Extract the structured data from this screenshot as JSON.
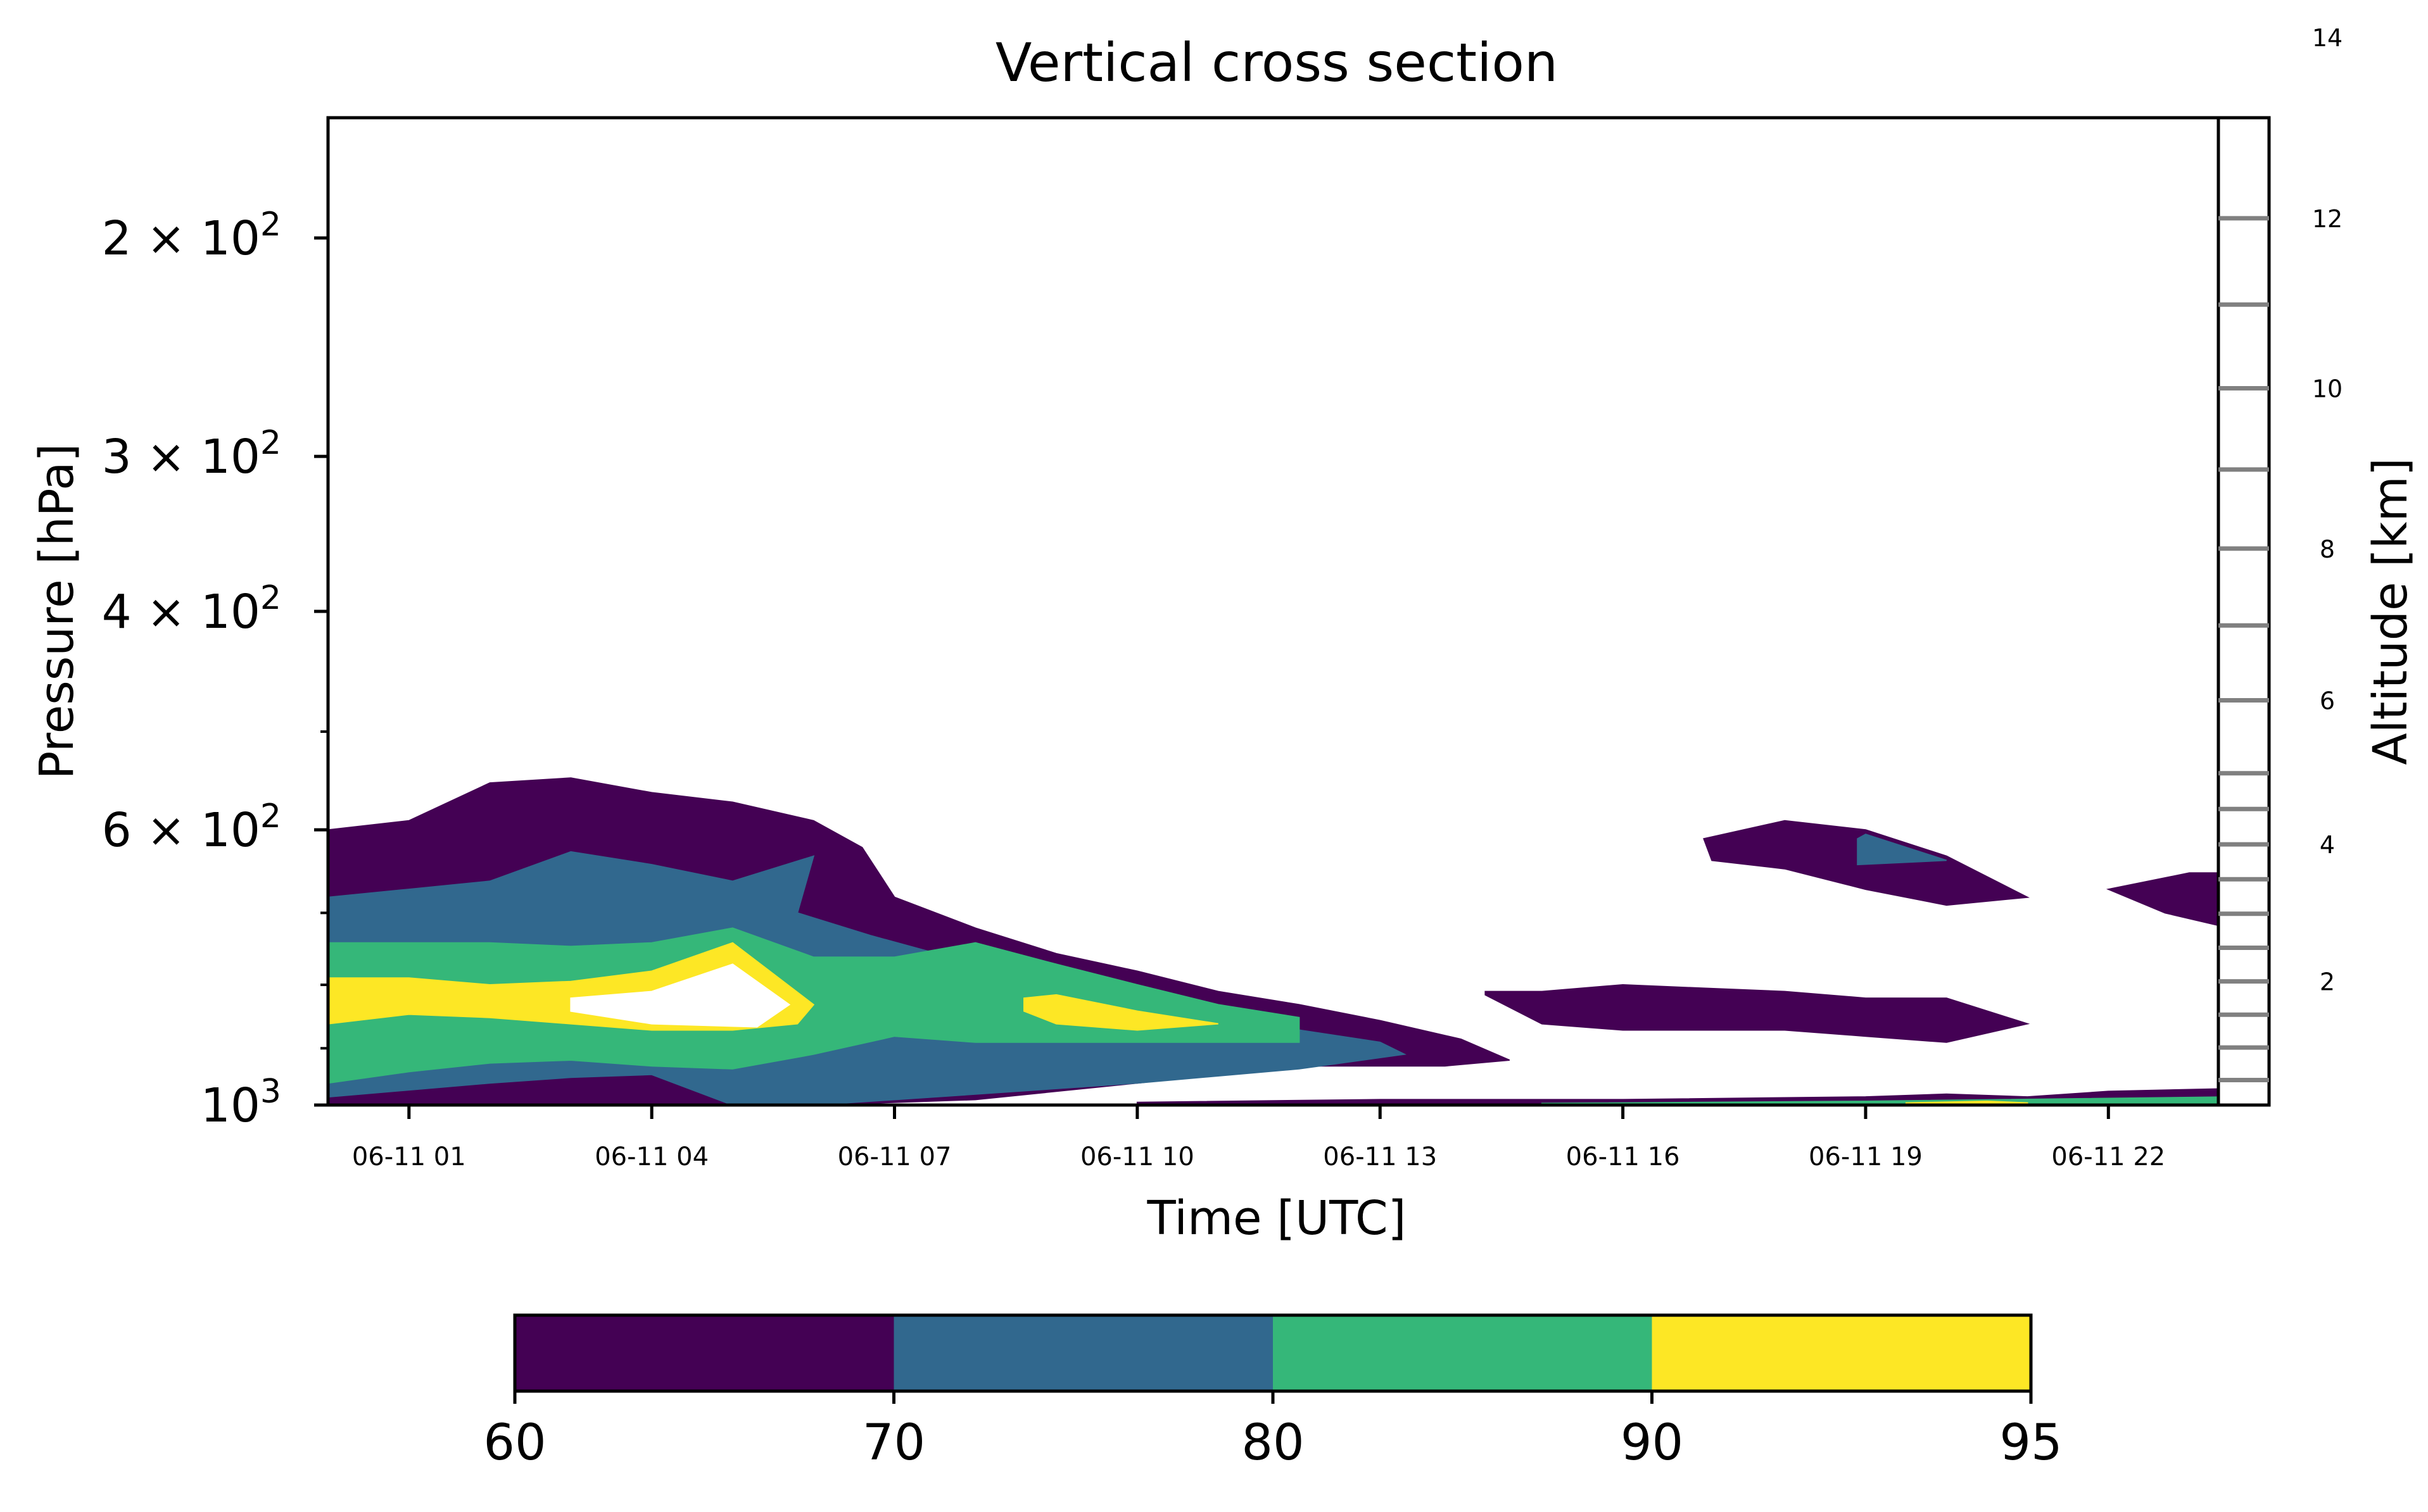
{
  "chart_data": {
    "type": "heatmap",
    "title": "Vertical cross section",
    "xlabel": "Time [UTC]",
    "ylabel": "Pressure [hPa]",
    "y2label": "Altitude [km]",
    "y_scale": "log",
    "y_inverted": true,
    "x_range": [
      "06-11 00:00",
      "06-11 23:30"
    ],
    "y_range_hpa": [
      1000,
      160
    ],
    "x_ticks": [
      {
        "t": 1,
        "label": "06-11 01"
      },
      {
        "t": 4,
        "label": "06-11 04"
      },
      {
        "t": 7,
        "label": "06-11 07"
      },
      {
        "t": 10,
        "label": "06-11 10"
      },
      {
        "t": 13,
        "label": "06-11 13"
      },
      {
        "t": 16,
        "label": "06-11 16"
      },
      {
        "t": 19,
        "label": "06-11 19"
      },
      {
        "t": 22,
        "label": "06-11 22"
      }
    ],
    "y_ticks": [
      {
        "p": 200,
        "base": "2 × 10",
        "exp": "2"
      },
      {
        "p": 300,
        "base": "3 × 10",
        "exp": "2"
      },
      {
        "p": 400,
        "base": "4 × 10",
        "exp": "2"
      },
      {
        "p": 600,
        "base": "6 × 10",
        "exp": "2"
      },
      {
        "p": 1000,
        "base": "10",
        "exp": "3"
      }
    ],
    "y_minor_ticks": [
      500,
      700,
      800,
      900
    ],
    "altitude_ticks_km": [
      {
        "km": 2,
        "label": "2"
      },
      {
        "km": 4,
        "label": "4"
      },
      {
        "km": 6,
        "label": "6"
      },
      {
        "km": 8,
        "label": "8"
      },
      {
        "km": 10,
        "label": "10"
      },
      {
        "km": 12,
        "label": "12"
      },
      {
        "km": 14,
        "label": "14"
      }
    ],
    "levels": [
      60,
      70,
      80,
      90,
      95
    ],
    "level_colors": [
      "#440154",
      "#31688e",
      "#35b779",
      "#fde725"
    ],
    "colorbar": {
      "orientation": "horizontal",
      "tick_labels": [
        "60",
        "70",
        "80",
        "90",
        "95"
      ]
    },
    "contour_regions": [
      {
        "level": 60,
        "color": "#440154",
        "points": [
          [
            0,
            600
          ],
          [
            1,
            590
          ],
          [
            2,
            550
          ],
          [
            3,
            545
          ],
          [
            4,
            560
          ],
          [
            5,
            570
          ],
          [
            6,
            590
          ],
          [
            6.6,
            620
          ],
          [
            7,
            680
          ],
          [
            8,
            720
          ],
          [
            9,
            755
          ],
          [
            10,
            780
          ],
          [
            11,
            810
          ],
          [
            12,
            830
          ],
          [
            13,
            855
          ],
          [
            14,
            885
          ],
          [
            14.6,
            920
          ],
          [
            13.8,
            930
          ],
          [
            12,
            930
          ],
          [
            10,
            960
          ],
          [
            8,
            990
          ],
          [
            6,
            1000
          ],
          [
            4,
            1000
          ],
          [
            2,
            1000
          ],
          [
            0,
            1000
          ]
        ]
      },
      {
        "level": 70,
        "color": "#31688e",
        "points": [
          [
            0,
            680
          ],
          [
            1,
            670
          ],
          [
            2,
            660
          ],
          [
            3,
            625
          ],
          [
            4,
            640
          ],
          [
            5,
            660
          ],
          [
            6,
            630
          ],
          [
            5.8,
            700
          ],
          [
            6.7,
            730
          ],
          [
            8,
            770
          ],
          [
            9,
            800
          ],
          [
            10,
            820
          ],
          [
            11,
            850
          ],
          [
            12,
            870
          ],
          [
            13,
            890
          ],
          [
            13.3,
            910
          ],
          [
            12,
            935
          ],
          [
            10,
            960
          ],
          [
            8,
            980
          ],
          [
            6,
            1000
          ],
          [
            5,
            1000
          ],
          [
            4,
            945
          ],
          [
            3,
            950
          ],
          [
            2,
            960
          ],
          [
            0,
            985
          ]
        ]
      },
      {
        "level": 80,
        "color": "#35b779",
        "points": [
          [
            0,
            740
          ],
          [
            1,
            740
          ],
          [
            2,
            740
          ],
          [
            3,
            745
          ],
          [
            4,
            740
          ],
          [
            5,
            720
          ],
          [
            6,
            760
          ],
          [
            7,
            760
          ],
          [
            8,
            740
          ],
          [
            9,
            770
          ],
          [
            10,
            800
          ],
          [
            11,
            830
          ],
          [
            12,
            850
          ],
          [
            12,
            890
          ],
          [
            11,
            890
          ],
          [
            10,
            890
          ],
          [
            9,
            890
          ],
          [
            8,
            890
          ],
          [
            7,
            880
          ],
          [
            6,
            910
          ],
          [
            5,
            935
          ],
          [
            4,
            930
          ],
          [
            3,
            920
          ],
          [
            2,
            925
          ],
          [
            1,
            940
          ],
          [
            0,
            960
          ]
        ]
      },
      {
        "level": 90,
        "color": "#fde725",
        "points": [
          [
            0,
            790
          ],
          [
            1,
            790
          ],
          [
            2,
            800
          ],
          [
            3,
            795
          ],
          [
            4,
            780
          ],
          [
            5,
            740
          ],
          [
            6,
            830
          ],
          [
            5.8,
            860
          ],
          [
            5,
            870
          ],
          [
            4,
            870
          ],
          [
            3,
            860
          ],
          [
            2,
            850
          ],
          [
            1,
            845
          ],
          [
            0,
            860
          ]
        ]
      },
      {
        "level": 90,
        "color": "#fde725",
        "points": [
          [
            8.6,
            820
          ],
          [
            9,
            815
          ],
          [
            10,
            840
          ],
          [
            11,
            860
          ],
          [
            10,
            870
          ],
          [
            9,
            860
          ],
          [
            8.6,
            840
          ]
        ]
      },
      {
        "level": 95,
        "color": "#ffffff",
        "points": [
          [
            3,
            820
          ],
          [
            4,
            810
          ],
          [
            5,
            770
          ],
          [
            5.7,
            830
          ],
          [
            5.3,
            865
          ],
          [
            4,
            860
          ],
          [
            3,
            840
          ]
        ]
      },
      {
        "level": 60,
        "color": "#440154",
        "points": [
          [
            14.3,
            810
          ],
          [
            15,
            810
          ],
          [
            16,
            800
          ],
          [
            17,
            805
          ],
          [
            18,
            810
          ],
          [
            19,
            820
          ],
          [
            20,
            820
          ],
          [
            21,
            860
          ],
          [
            20,
            890
          ],
          [
            19,
            880
          ],
          [
            18,
            870
          ],
          [
            17,
            870
          ],
          [
            16,
            870
          ],
          [
            15,
            860
          ],
          [
            14.3,
            815
          ]
        ]
      },
      {
        "level": 60,
        "color": "#440154",
        "points": [
          [
            17,
            610
          ],
          [
            18,
            590
          ],
          [
            19,
            600
          ],
          [
            20,
            630
          ],
          [
            21,
            680
          ],
          [
            20,
            690
          ],
          [
            19,
            670
          ],
          [
            18,
            645
          ],
          [
            17.1,
            635
          ]
        ]
      },
      {
        "level": 70,
        "color": "#31688e",
        "points": [
          [
            18.9,
            610
          ],
          [
            19,
            605
          ],
          [
            20,
            635
          ],
          [
            18.9,
            640
          ]
        ]
      },
      {
        "level": 60,
        "color": "#440154",
        "points": [
          [
            22,
            670
          ],
          [
            23,
            650
          ],
          [
            23.5,
            650
          ],
          [
            23.5,
            720
          ],
          [
            22.7,
            700
          ]
        ]
      },
      {
        "level": 60,
        "color": "#440154",
        "points": [
          [
            10,
            995
          ],
          [
            13,
            990
          ],
          [
            16,
            990
          ],
          [
            19,
            985
          ],
          [
            20,
            980
          ],
          [
            21,
            985
          ],
          [
            22,
            975
          ],
          [
            23.5,
            970
          ],
          [
            23.5,
            1000
          ],
          [
            10,
            1000
          ]
        ]
      },
      {
        "level": 80,
        "color": "#35b779",
        "points": [
          [
            15,
            997
          ],
          [
            19,
            993
          ],
          [
            23.5,
            985
          ],
          [
            23.5,
            1000
          ],
          [
            15,
            1000
          ]
        ]
      },
      {
        "level": 90,
        "color": "#fde725",
        "points": [
          [
            19.5,
            996
          ],
          [
            20.5,
            993
          ],
          [
            21,
            996
          ],
          [
            21,
            1000
          ],
          [
            19.5,
            1000
          ]
        ]
      }
    ]
  }
}
